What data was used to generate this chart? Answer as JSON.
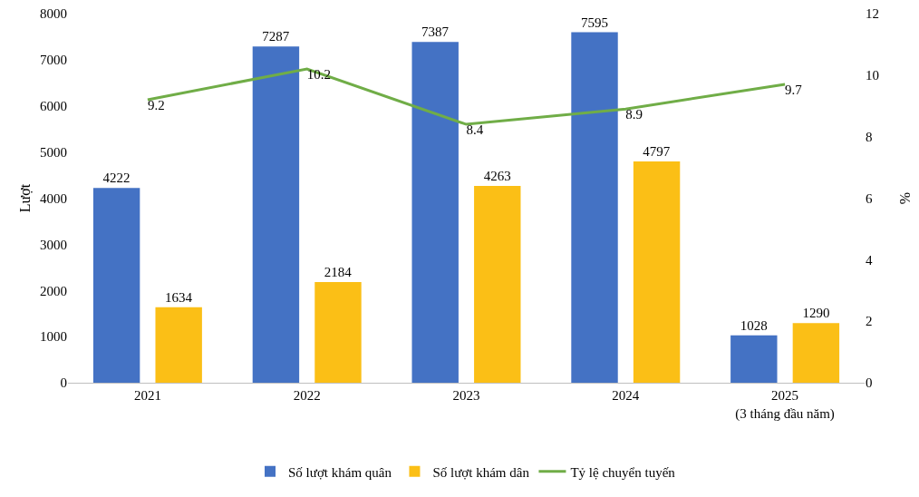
{
  "chart_data": {
    "type": "bar",
    "categories": [
      "2021",
      "2022",
      "2023",
      "2024",
      "2025\n(3 tháng đầu năm)"
    ],
    "series": [
      {
        "name": "Số lượt khám quân",
        "color": "#4472c4",
        "values": [
          4222,
          7287,
          7387,
          7595,
          1028
        ]
      },
      {
        "name": "Số lượt khám dân",
        "color": "#fbbf16",
        "values": [
          1634,
          2184,
          4263,
          4797,
          1290
        ]
      },
      {
        "name": "Tỷ lệ chuyển tuyến",
        "color": "#70ad47",
        "type": "line",
        "axis": "y2",
        "values": [
          9.2,
          10.2,
          8.4,
          8.9,
          9.7
        ]
      }
    ],
    "ylabel": "Lượt",
    "y2label": "%",
    "ylim": [
      0,
      8000
    ],
    "yticks": [
      0,
      1000,
      2000,
      3000,
      4000,
      5000,
      6000,
      7000,
      8000
    ],
    "y2lim": [
      0,
      12
    ],
    "y2ticks": [
      0,
      2,
      4,
      6,
      8,
      10,
      12
    ],
    "data_labels": true,
    "legend": "bottom",
    "grid": false,
    "marker": "none"
  }
}
